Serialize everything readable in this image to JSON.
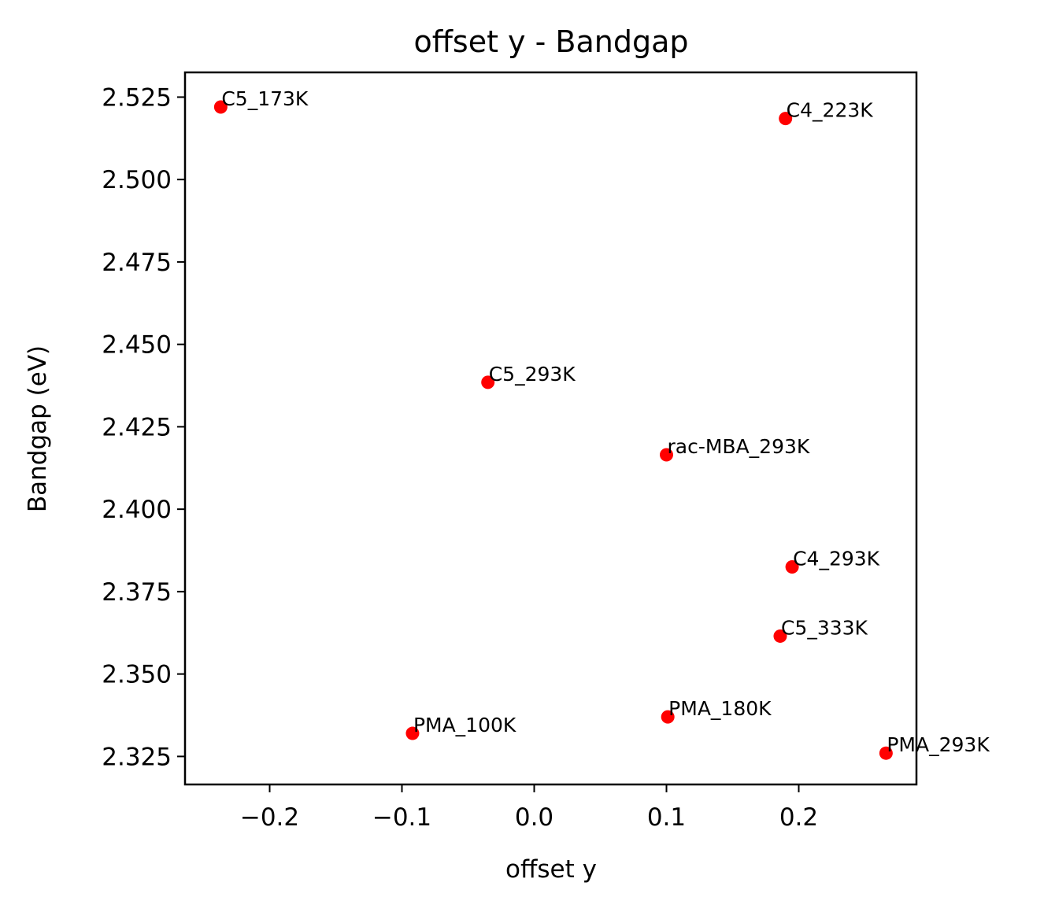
{
  "chart_data": {
    "type": "scatter",
    "title": "offset y - Bandgap",
    "xlabel": "offset y",
    "ylabel": "Bandgap (eV)",
    "xlim": [
      -0.264,
      0.289
    ],
    "ylim": [
      2.3165,
      2.5325
    ],
    "xticks": [
      -0.2,
      -0.1,
      0.0,
      0.1,
      0.2
    ],
    "xtick_labels": [
      "−0.2",
      "−0.1",
      "0.0",
      "0.1",
      "0.2"
    ],
    "yticks": [
      2.325,
      2.35,
      2.375,
      2.4,
      2.425,
      2.45,
      2.475,
      2.5,
      2.525
    ],
    "ytick_labels": [
      "2.325",
      "2.350",
      "2.375",
      "2.400",
      "2.425",
      "2.450",
      "2.475",
      "2.500",
      "2.525"
    ],
    "grid": false,
    "marker_color": "#ff0000",
    "points": [
      {
        "label": "C5_173K",
        "x": -0.237,
        "y": 2.522
      },
      {
        "label": "C4_223K",
        "x": 0.19,
        "y": 2.5185
      },
      {
        "label": "C5_293K",
        "x": -0.035,
        "y": 2.4385
      },
      {
        "label": "rac-MBA_293K",
        "x": 0.1,
        "y": 2.4165
      },
      {
        "label": "C4_293K",
        "x": 0.195,
        "y": 2.3825
      },
      {
        "label": "C5_333K",
        "x": 0.186,
        "y": 2.3615
      },
      {
        "label": "PMA_180K",
        "x": 0.101,
        "y": 2.337
      },
      {
        "label": "PMA_100K",
        "x": -0.092,
        "y": 2.332
      },
      {
        "label": "PMA_293K",
        "x": 0.266,
        "y": 2.326
      }
    ]
  }
}
